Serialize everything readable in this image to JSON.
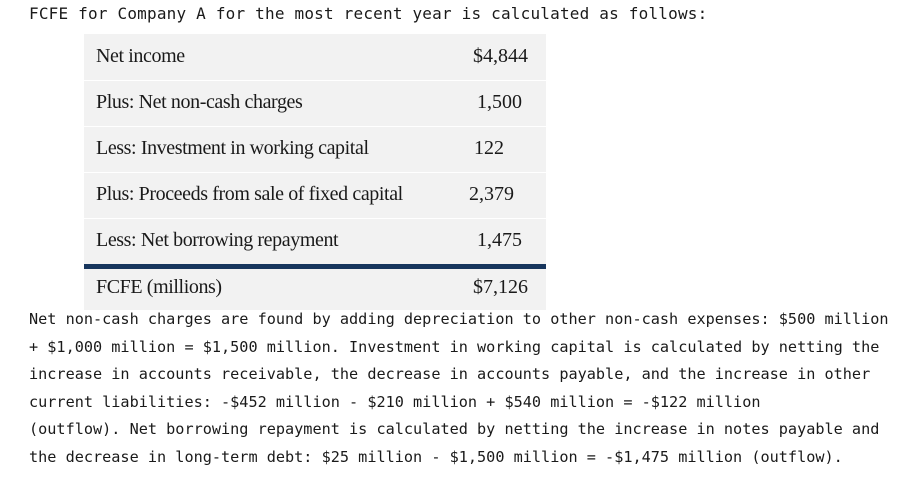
{
  "intro": "FCFE for Company A for the most recent year is calculated as follows:",
  "table": {
    "rows": [
      {
        "label": "Net income",
        "value": "$4,844"
      },
      {
        "label": "Plus: Net non-cash charges",
        "value": "1,500"
      },
      {
        "label": "Less: Investment in working capital",
        "value": "122"
      },
      {
        "label": "Plus: Proceeds from sale of fixed capital",
        "value": "2,379"
      },
      {
        "label": "Less: Net borrowing repayment",
        "value": "1,475"
      }
    ],
    "total": {
      "label": "FCFE (millions)",
      "value": "$7,126"
    }
  },
  "explanation": [
    "Net non-cash charges are found by adding depreciation to other non-cash expenses: $500 million",
    "+ $1,000 million = $1,500 million. Investment in working capital is calculated by netting the",
    "increase in accounts receivable, the decrease in accounts payable, and the increase in other",
    "current liabilities: -$452 million - $210 million + $540 million = -$122 million",
    "(outflow). Net borrowing repayment is calculated by netting the increase in notes payable and",
    "the decrease in long-term debt: $25 million - $1,500 million = -$1,475 million (outflow)."
  ]
}
